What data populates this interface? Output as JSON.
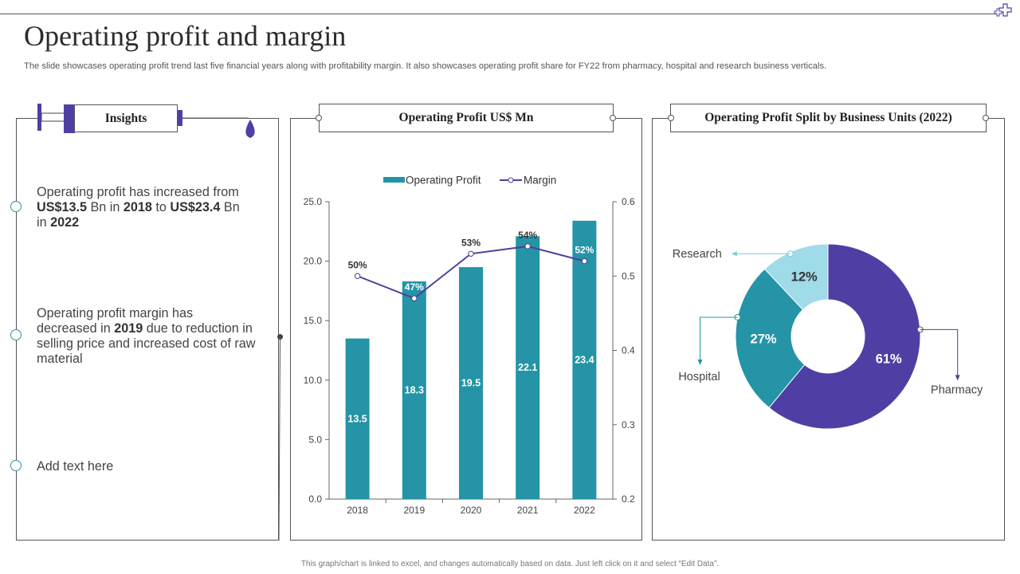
{
  "page": {
    "title": "Operating profit and margin",
    "subtitle": "The slide showcases operating profit trend last five financial years along with profitability margin. It also showcases operating profit share for FY22 from pharmacy, hospital and research business verticals.",
    "footer": "This graph/chart is linked to excel, and changes automatically based on data. Just left click on it and select “Edit Data”."
  },
  "insights": {
    "header": "Insights",
    "items": [
      {
        "parts": [
          {
            "t": "Operating profit has increased from ",
            "b": false
          },
          {
            "t": "US$13.5",
            "b": true
          },
          {
            "t": " Bn in ",
            "b": false
          },
          {
            "t": "2018",
            "b": true
          },
          {
            "t": " to ",
            "b": false
          },
          {
            "t": "US$23.4",
            "b": true
          },
          {
            "t": " Bn in ",
            "b": false
          },
          {
            "t": "2022",
            "b": true
          }
        ]
      },
      {
        "parts": [
          {
            "t": "Operating profit margin has decreased in ",
            "b": false
          },
          {
            "t": "2019",
            "b": true
          },
          {
            "t": " due to reduction in selling price and increased cost of raw material",
            "b": false
          }
        ]
      },
      {
        "parts": [
          {
            "t": "Add text here",
            "b": false
          }
        ]
      }
    ]
  },
  "colors": {
    "teal": "#2494a6",
    "purple": "#4f3fa5",
    "light": "#9fdbe8",
    "line": "#4f3f9a"
  },
  "chart_data": [
    {
      "type": "bar",
      "title": "Operating Profit US$ Mn",
      "categories": [
        "2018",
        "2019",
        "2020",
        "2021",
        "2022"
      ],
      "series": [
        {
          "name": "Operating Profit",
          "values": [
            13.5,
            18.3,
            19.5,
            22.1,
            23.4
          ],
          "value_labels": [
            "13.5",
            "18.3",
            "19.5",
            "22.1",
            "23.4"
          ]
        },
        {
          "name": "Margin",
          "type": "line",
          "axis": "secondary",
          "values": [
            0.5,
            0.47,
            0.53,
            0.54,
            0.52
          ],
          "value_labels": [
            "50%",
            "47%",
            "53%",
            "54%",
            "52%"
          ]
        }
      ],
      "ylim": [
        0,
        25
      ],
      "y_ticks": [
        "0.0",
        "5.0",
        "10.0",
        "15.0",
        "20.0",
        "25.0"
      ],
      "y2lim": [
        0.2,
        0.6
      ],
      "y2_ticks": [
        "0.2",
        "0.3",
        "0.4",
        "0.5",
        "0.6"
      ],
      "legend": "top"
    },
    {
      "type": "pie",
      "title": "Operating Profit Split by Business Units (2022)",
      "labels": [
        "Pharmacy",
        "Hospital",
        "Research"
      ],
      "values": [
        61,
        27,
        12
      ],
      "value_labels": [
        "61%",
        "27%",
        "12%"
      ]
    }
  ]
}
